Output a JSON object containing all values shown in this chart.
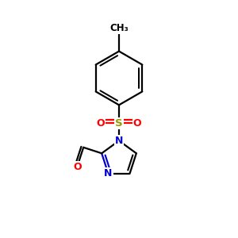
{
  "bg_color": "#ffffff",
  "line_color": "#000000",
  "bond_width": 1.6,
  "atom_colors": {
    "S": "#999900",
    "O": "#ff0000",
    "N": "#0000cc",
    "C": "#000000"
  },
  "font_size_atom": 9,
  "font_size_ch3": 8.5
}
